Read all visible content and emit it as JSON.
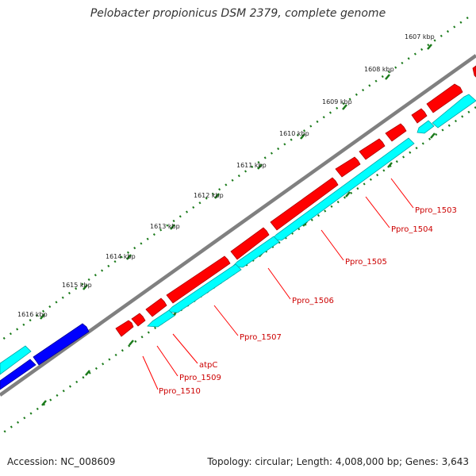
{
  "header": {
    "title": "Pelobacter propionicus DSM 2379, complete genome"
  },
  "footer": {
    "accession": "Accession: NC_008609",
    "summary": "Topology: circular; Length: 4,008,000 bp; Genes: 3,643"
  },
  "colors": {
    "backbone": "#808080",
    "forward_gene": "#ff0000",
    "forward_gene_dark": "#b00000",
    "reverse_gene": "#00ffff",
    "reverse_gene_dark": "#00a6a6",
    "other_gene": "#0000ff",
    "other_gene_dark": "#000099",
    "ticks": "#1a7a1a",
    "label": "#cc0000"
  },
  "ticks": [
    {
      "label": "1607 kbp"
    },
    {
      "label": "1608 kbp"
    },
    {
      "label": "1609 kbp"
    },
    {
      "label": "1610 kbp"
    },
    {
      "label": "1611 kbp"
    },
    {
      "label": "1612 kbp"
    },
    {
      "label": "1613 kbp"
    },
    {
      "label": "1614 kbp"
    },
    {
      "label": "1615 kbp"
    },
    {
      "label": "1616 kbp"
    }
  ],
  "gene_labels": [
    {
      "label": "Ppro_1503"
    },
    {
      "label": "Ppro_1504"
    },
    {
      "label": "Ppro_1505"
    },
    {
      "label": "Ppro_1506"
    },
    {
      "label": "Ppro_1507"
    },
    {
      "label": "atpC"
    },
    {
      "label": "Ppro_1509"
    },
    {
      "label": "Ppro_1510"
    }
  ]
}
